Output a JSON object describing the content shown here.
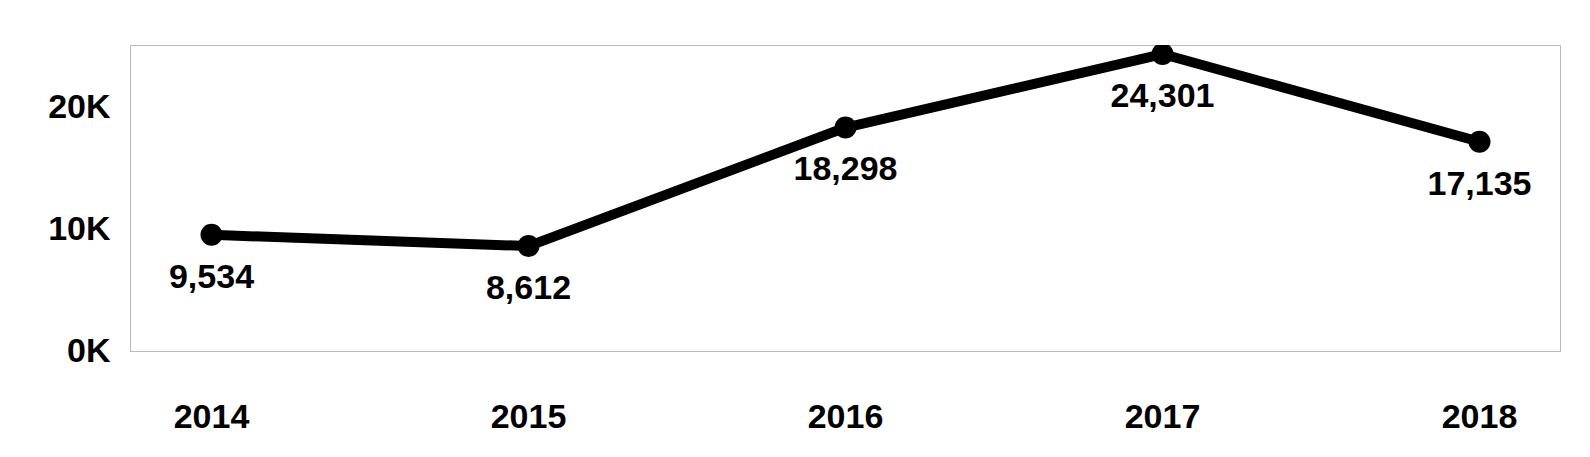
{
  "chart_data": {
    "type": "line",
    "categories": [
      "2014",
      "2015",
      "2016",
      "2017",
      "2018"
    ],
    "values": [
      9534,
      8612,
      18298,
      24301,
      17135
    ],
    "value_labels": [
      "9,534",
      "8,612",
      "18,298",
      "24,301",
      "17,135"
    ],
    "color": "#000000",
    "marker": "circle",
    "data_labels": true,
    "grid": false,
    "ylim": [
      0,
      25000
    ],
    "yticks": [
      {
        "value": 0,
        "label": "0K"
      },
      {
        "value": 10000,
        "label": "10K"
      },
      {
        "value": 20000,
        "label": "20K"
      }
    ]
  }
}
